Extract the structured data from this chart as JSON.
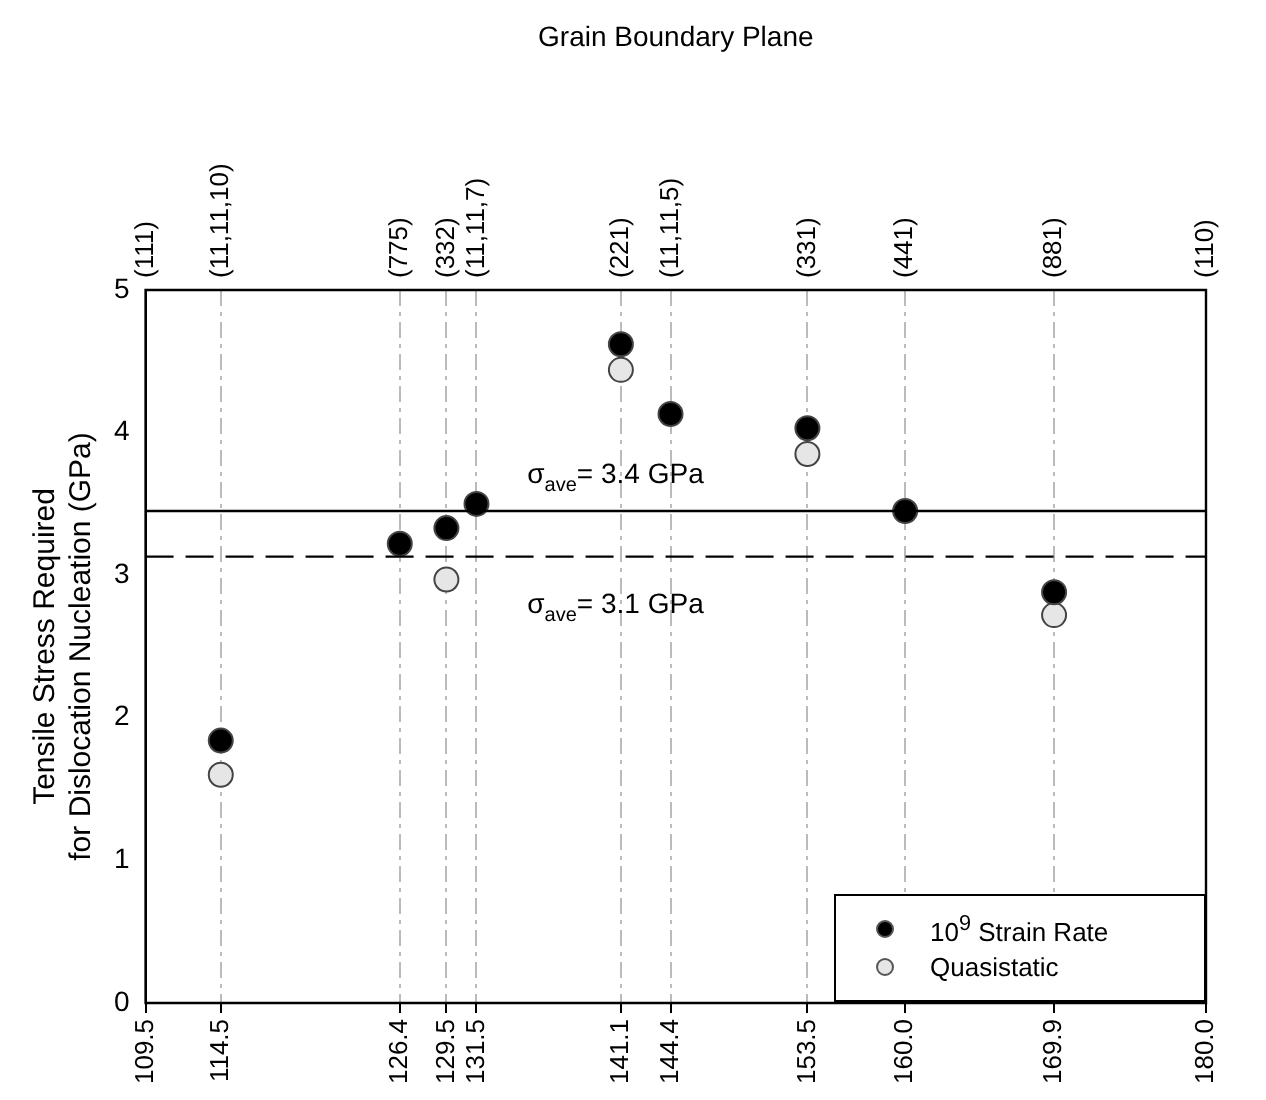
{
  "chart_data": {
    "type": "scatter",
    "ylabel": "Tensile Stress Required\nfor Dislocation Nucleation (GPa)",
    "x2label": "Grain Boundary Plane",
    "xlim": [
      109.5,
      180.0
    ],
    "xticks": [
      {
        "value": 109.5,
        "label": "109.5"
      },
      {
        "value": 114.5,
        "label": "114.5"
      },
      {
        "value": 126.4,
        "label": "126.4"
      },
      {
        "value": 129.5,
        "label": "129.5"
      },
      {
        "value": 131.5,
        "label": "131.5"
      },
      {
        "value": 141.1,
        "label": "141.1"
      },
      {
        "value": 144.4,
        "label": "144.4"
      },
      {
        "value": 153.5,
        "label": "153.5"
      },
      {
        "value": 160.0,
        "label": "160.0"
      },
      {
        "value": 169.9,
        "label": "169.9"
      },
      {
        "value": 180.0,
        "label": "180.0"
      }
    ],
    "annotations": [
      "(111)",
      "(11,11,10)",
      "(775)",
      "(332)",
      "(11,11,7)",
      "(221)",
      "(11,11,5)",
      "(331)",
      "(441)",
      "(881)",
      "(110)"
    ],
    "ylim": [
      0,
      5
    ],
    "yticks": [
      0,
      1,
      2,
      3,
      4,
      5
    ],
    "grid": "x",
    "legend": "bottom right",
    "marker": "circle",
    "series": [
      {
        "name": "10$^{9}$ Strain Rate",
        "color": "#000000",
        "x": [
          114.5,
          126.4,
          129.5,
          131.5,
          141.1,
          144.4,
          153.5,
          160.0,
          169.9
        ],
        "values": [
          1.84,
          3.22,
          3.33,
          3.5,
          4.62,
          4.13,
          4.03,
          3.45,
          2.88
        ]
      },
      {
        "name": "Quasistatic",
        "color": "#e6e6e6",
        "x": [
          114.5,
          129.5,
          141.1,
          153.5,
          169.9
        ],
        "values": [
          1.6,
          2.97,
          4.44,
          3.85,
          2.72
        ]
      }
    ],
    "ref_lines": [
      {
        "axis": "y",
        "value": 3.45,
        "label": "σ$_{ave}$= 3.4 GPa",
        "line_style": "solid",
        "color": "#000000"
      },
      {
        "axis": "y",
        "value": 3.13,
        "label": "σ$_{ave}$= 3.1 GPa",
        "line_style": "dashed",
        "color": "#000000"
      }
    ]
  }
}
